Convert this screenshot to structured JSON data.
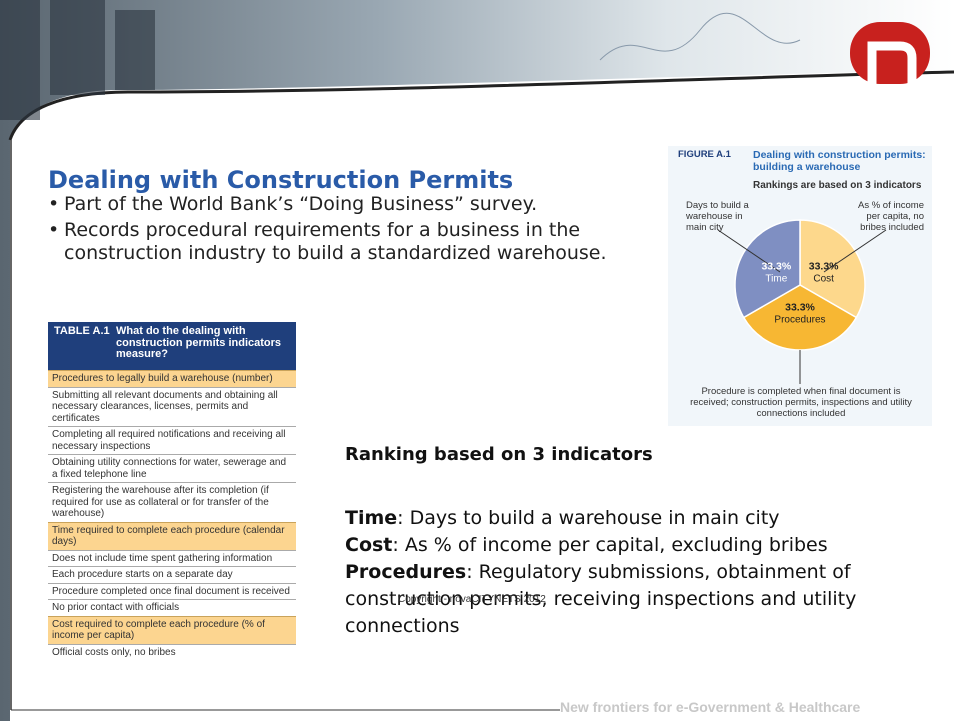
{
  "header": {
    "title": "Dealing with Construction Permits",
    "bullets": [
      "Part of the World Bank’s “Doing Business” survey.",
      "Records procedural requirements for a business in the construction industry to build a standardized warehouse."
    ]
  },
  "table": {
    "label": "TABLE A.1",
    "caption": "What do the dealing with construction permits indicators measure?",
    "sections": [
      {
        "heading": "Procedures to legally build a warehouse",
        "unit": "(number)",
        "items": [
          "Submitting all relevant documents and obtaining all necessary clearances, licenses, permits and certificates",
          "Completing all required notifications and receiving all necessary inspections",
          "Obtaining utility connections for water, sewerage and a fixed telephone line",
          "Registering the warehouse after its completion (if required for use as collateral or for transfer of the warehouse)"
        ]
      },
      {
        "heading": "Time required to complete each procedure",
        "unit": "(calendar days)",
        "items": [
          "Does not include time spent gathering information",
          "Each procedure starts on a separate day",
          "Procedure completed once final document is received",
          "No prior contact with officials"
        ]
      },
      {
        "heading": "Cost required to complete each procedure",
        "unit": "(% of income per capita)",
        "items": [
          "Official costs only, no bribes"
        ]
      }
    ]
  },
  "chart_data": {
    "type": "pie",
    "figure_label": "FIGURE A.1",
    "title": "Dealing with construction permits: building a warehouse",
    "subtitle": "Rankings are based on 3 indicators",
    "categories": [
      "Cost",
      "Procedures",
      "Time"
    ],
    "values": [
      33.3,
      33.3,
      33.3
    ],
    "value_labels": [
      "33.3%",
      "33.3%",
      "33.3%"
    ],
    "colors": [
      "#fdd88c",
      "#f7b733",
      "#7f8fc2"
    ],
    "annotations": [
      "Days to build a warehouse in main city",
      "As % of income per capita, no bribes included",
      "Procedure is completed when final document is received; construction permits, inspections and utility connections included"
    ]
  },
  "body": {
    "heading": "Ranking based on 3 indicators",
    "definitions": [
      {
        "term": "Time",
        "text": ": Days to build a warehouse in main city"
      },
      {
        "term": "Cost",
        "text": ": As % of income per capital, excluding bribes"
      },
      {
        "term": "Procedures",
        "text": ": Regulatory submissions, obtainment of construction permits, receiving inspections and utility connections"
      }
    ],
    "copyright": "Copyright -  novaCITYNETS 2012",
    "footer": "New frontiers for e-Government & Healthcare"
  }
}
